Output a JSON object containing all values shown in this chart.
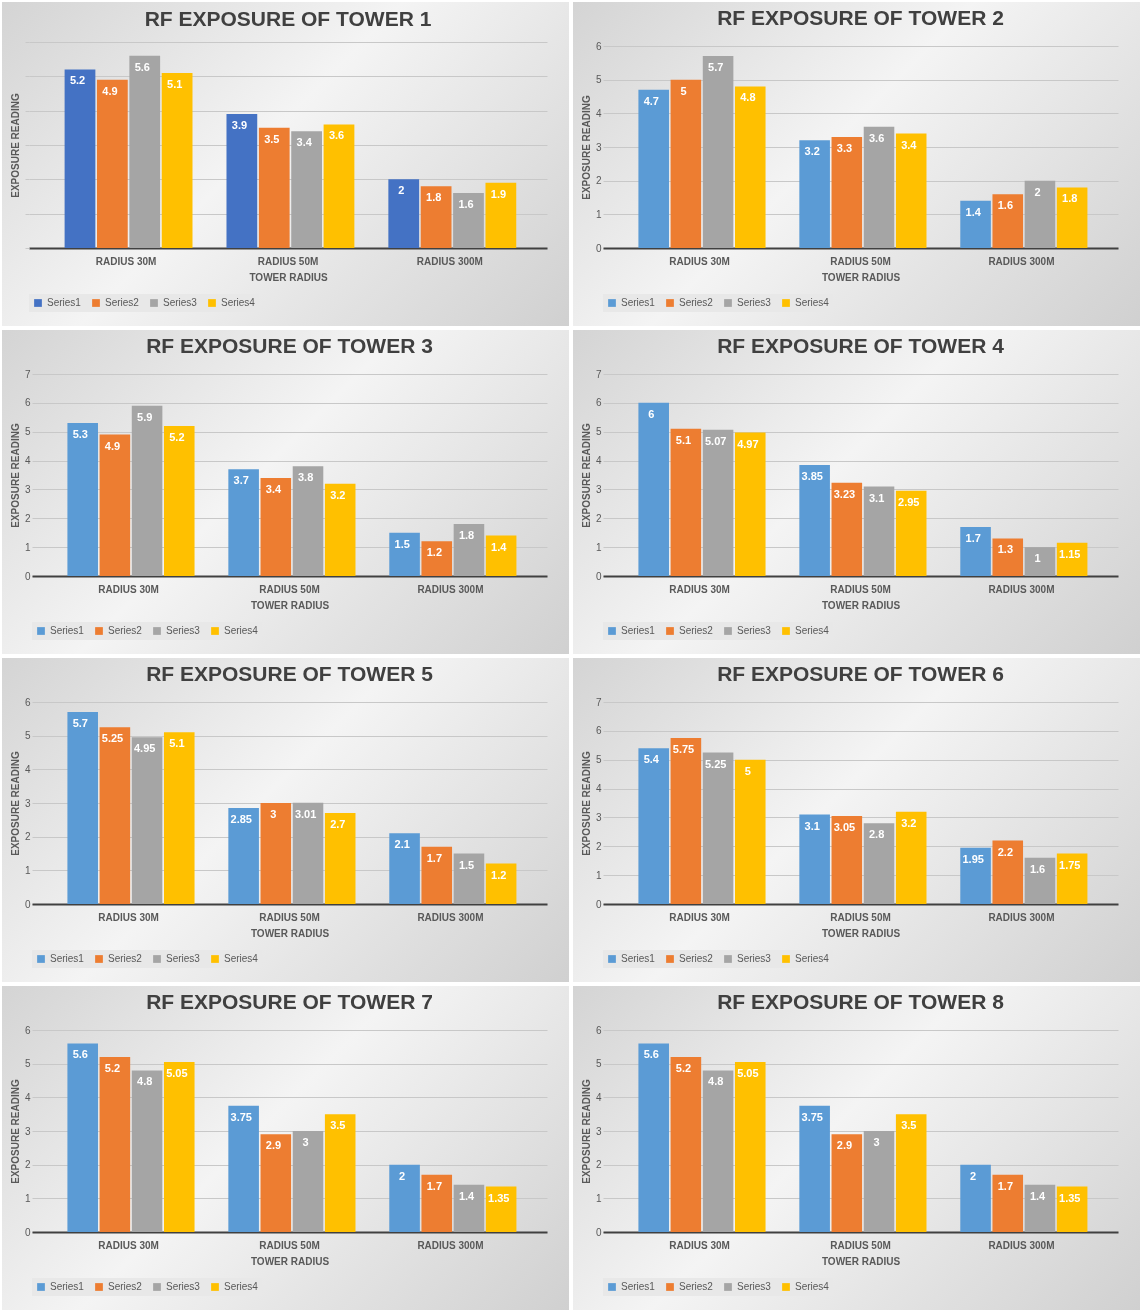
{
  "chart_data": [
    {
      "type": "bar",
      "title": "RF EXPOSURE OF TOWER 1",
      "xlabel": "TOWER RADIUS",
      "ylabel": "EXPOSURE READING",
      "categories": [
        "RADIUS 30M",
        "RADIUS 50M",
        "RADIUS 300M"
      ],
      "yticks": [
        {
          "value": 0,
          "label": null
        },
        {
          "value": 1,
          "label": null
        },
        {
          "value": 2,
          "label": null
        },
        {
          "value": 3,
          "label": null
        },
        {
          "value": 4,
          "label": null
        },
        {
          "value": 5,
          "label": null
        },
        {
          "value": 6,
          "label": null
        }
      ],
      "tick_labels": "x",
      "grid": "y",
      "legend": "bottom",
      "data_labels": true,
      "series": [
        {
          "name": "Series1",
          "color": "#4472c4",
          "values": [
            5.2,
            3.9,
            2
          ]
        },
        {
          "name": "Series2",
          "color": "#ed7d31",
          "values": [
            4.9,
            3.5,
            1.8
          ]
        },
        {
          "name": "Series3",
          "color": "#a5a5a5",
          "values": [
            5.6,
            3.4,
            1.6
          ]
        },
        {
          "name": "Series4",
          "color": "#ffc000",
          "values": [
            5.1,
            3.6,
            1.9
          ]
        }
      ]
    },
    {
      "type": "bar",
      "title": "RF EXPOSURE OF TOWER 2",
      "xlabel": "TOWER RADIUS",
      "ylabel": "EXPOSURE READING",
      "categories": [
        "RADIUS 30M",
        "RADIUS 50M",
        "RADIUS 300M"
      ],
      "ylim": [
        0,
        6
      ],
      "yticks": [
        0,
        1,
        2,
        3,
        4,
        5,
        6
      ],
      "grid": "y",
      "legend": "bottom",
      "data_labels": true,
      "series": [
        {
          "name": "Series1",
          "color": "#5b9bd5",
          "values": [
            4.7,
            3.2,
            1.4
          ]
        },
        {
          "name": "Series2",
          "color": "#ed7d31",
          "values": [
            5,
            3.3,
            1.6
          ]
        },
        {
          "name": "Series3",
          "color": "#a5a5a5",
          "values": [
            5.7,
            3.6,
            2
          ]
        },
        {
          "name": "Series4",
          "color": "#ffc000",
          "values": [
            4.8,
            3.4,
            1.8
          ]
        }
      ]
    },
    {
      "type": "bar",
      "title": "RF EXPOSURE OF TOWER 3",
      "xlabel": "TOWER RADIUS",
      "ylabel": "EXPOSURE READING",
      "categories": [
        "RADIUS 30M",
        "RADIUS 50M",
        "RADIUS 300M"
      ],
      "ylim": [
        0,
        7
      ],
      "yticks": [
        0,
        1,
        2,
        3,
        4,
        5,
        6,
        7
      ],
      "grid": "y",
      "legend": "bottom",
      "data_labels": true,
      "series": [
        {
          "name": "Series1",
          "color": "#5b9bd5",
          "values": [
            5.3,
            3.7,
            1.5
          ]
        },
        {
          "name": "Series2",
          "color": "#ed7d31",
          "values": [
            4.9,
            3.4,
            1.2
          ]
        },
        {
          "name": "Series3",
          "color": "#a5a5a5",
          "values": [
            5.9,
            3.8,
            1.8
          ]
        },
        {
          "name": "Series4",
          "color": "#ffc000",
          "values": [
            5.2,
            3.2,
            1.4
          ]
        }
      ]
    },
    {
      "type": "bar",
      "title": "RF EXPOSURE OF TOWER 4",
      "xlabel": "TOWER RADIUS",
      "ylabel": "EXPOSURE READING",
      "categories": [
        "RADIUS 30M",
        "RADIUS 50M",
        "RADIUS 300M"
      ],
      "ylim": [
        0,
        7
      ],
      "yticks": [
        0,
        1,
        2,
        3,
        4,
        5,
        6,
        7
      ],
      "grid": "y",
      "legend": "bottom",
      "data_labels": true,
      "series": [
        {
          "name": "Series1",
          "color": "#5b9bd5",
          "values": [
            6,
            3.85,
            1.7
          ]
        },
        {
          "name": "Series2",
          "color": "#ed7d31",
          "values": [
            5.1,
            3.23,
            1.3
          ]
        },
        {
          "name": "Series3",
          "color": "#a5a5a5",
          "values": [
            5.07,
            3.1,
            1
          ]
        },
        {
          "name": "Series4",
          "color": "#ffc000",
          "values": [
            4.97,
            2.95,
            1.15
          ]
        }
      ]
    },
    {
      "type": "bar",
      "title": "RF EXPOSURE OF TOWER 5",
      "xlabel": "TOWER RADIUS",
      "ylabel": "EXPOSURE READING",
      "categories": [
        "RADIUS 30M",
        "RADIUS 50M",
        "RADIUS 300M"
      ],
      "ylim": [
        0,
        6
      ],
      "yticks": [
        0,
        1,
        2,
        3,
        4,
        5,
        6
      ],
      "grid": "y",
      "legend": "bottom",
      "data_labels": true,
      "series": [
        {
          "name": "Series1",
          "color": "#5b9bd5",
          "values": [
            5.7,
            2.85,
            2.1
          ]
        },
        {
          "name": "Series2",
          "color": "#ed7d31",
          "values": [
            5.25,
            3,
            1.7
          ]
        },
        {
          "name": "Series3",
          "color": "#a5a5a5",
          "values": [
            4.95,
            3.01,
            1.5
          ]
        },
        {
          "name": "Series4",
          "color": "#ffc000",
          "values": [
            5.1,
            2.7,
            1.2
          ]
        }
      ]
    },
    {
      "type": "bar",
      "title": "RF EXPOSURE OF TOWER 6",
      "xlabel": "TOWER RADIUS",
      "ylabel": "EXPOSURE READING",
      "categories": [
        "RADIUS 30M",
        "RADIUS 50M",
        "RADIUS 300M"
      ],
      "ylim": [
        0,
        7
      ],
      "yticks": [
        0,
        1,
        2,
        3,
        4,
        5,
        6,
        7
      ],
      "grid": "y",
      "legend": "bottom",
      "data_labels": true,
      "series": [
        {
          "name": "Series1",
          "color": "#5b9bd5",
          "values": [
            5.4,
            3.1,
            1.95
          ]
        },
        {
          "name": "Series2",
          "color": "#ed7d31",
          "values": [
            5.75,
            3.05,
            2.2
          ]
        },
        {
          "name": "Series3",
          "color": "#a5a5a5",
          "values": [
            5.25,
            2.8,
            1.6
          ]
        },
        {
          "name": "Series4",
          "color": "#ffc000",
          "values": [
            5,
            3.2,
            1.75
          ]
        }
      ]
    },
    {
      "type": "bar",
      "title": "RF EXPOSURE OF TOWER 7",
      "xlabel": "TOWER RADIUS",
      "ylabel": "EXPOSURE READING",
      "categories": [
        "RADIUS 30M",
        "RADIUS 50M",
        "RADIUS 300M"
      ],
      "ylim": [
        0,
        6
      ],
      "yticks": [
        0,
        1,
        2,
        3,
        4,
        5,
        6
      ],
      "grid": "y",
      "legend": "bottom",
      "data_labels": true,
      "series": [
        {
          "name": "Series1",
          "color": "#5b9bd5",
          "values": [
            5.6,
            3.75,
            2
          ]
        },
        {
          "name": "Series2",
          "color": "#ed7d31",
          "values": [
            5.2,
            2.9,
            1.7
          ]
        },
        {
          "name": "Series3",
          "color": "#a5a5a5",
          "values": [
            4.8,
            3,
            1.4
          ]
        },
        {
          "name": "Series4",
          "color": "#ffc000",
          "values": [
            5.05,
            3.5,
            1.35
          ]
        }
      ]
    },
    {
      "type": "bar",
      "title": "RF EXPOSURE OF TOWER 8",
      "xlabel": "TOWER RADIUS",
      "ylabel": "EXPOSURE READING",
      "categories": [
        "RADIUS 30M",
        "RADIUS 50M",
        "RADIUS 300M"
      ],
      "ylim": [
        0,
        6
      ],
      "yticks": [
        0,
        1,
        2,
        3,
        4,
        5,
        6
      ],
      "grid": "y",
      "legend": "bottom",
      "data_labels": true,
      "series": [
        {
          "name": "Series1",
          "color": "#5b9bd5",
          "values": [
            5.6,
            3.75,
            2
          ]
        },
        {
          "name": "Series2",
          "color": "#ed7d31",
          "values": [
            5.2,
            2.9,
            1.7
          ]
        },
        {
          "name": "Series3",
          "color": "#a5a5a5",
          "values": [
            4.8,
            3,
            1.4
          ]
        },
        {
          "name": "Series4",
          "color": "#ffc000",
          "values": [
            5.05,
            3.5,
            1.35
          ]
        }
      ]
    }
  ]
}
